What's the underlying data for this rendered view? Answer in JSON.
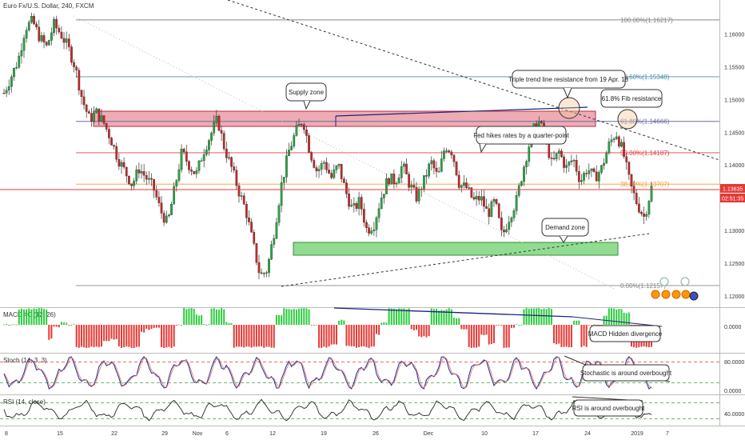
{
  "header": {
    "symbol_title": "Euro Fx/U.S. Dollar, 240, FXCM"
  },
  "price_tags": {
    "last": "1.13635",
    "countdown": "02:51:35"
  },
  "fib_levels": [
    {
      "label": "100.00%(1.16217)",
      "price": 1.16217,
      "color": "#888888"
    },
    {
      "label": "78.60%(1.15348)",
      "price": 1.15348,
      "color": "#4a8fa8"
    },
    {
      "label": "61.80%(1.14666)",
      "price": 1.14666,
      "color": "#6a6aa8"
    },
    {
      "label": "50.00%(1.14187)",
      "price": 1.14187,
      "color": "#e04040"
    },
    {
      "label": "38.20%(1.13707)",
      "price": 1.13707,
      "color": "#f0a030"
    },
    {
      "label": "0.00%(1.12157)",
      "price": 1.12157,
      "color": "#888888"
    }
  ],
  "annotations": {
    "supply_zone": "Supply zone",
    "triple_trend": "Triple trend line resistance from 19 Apr. 18",
    "fib_resistance": "61.8% Fib resistance",
    "fed_hikes": "Fed hikes rates by a quarter-point",
    "demand_zone": "Demand zone",
    "macd_div": "MACD Hidden divergence",
    "stoch_ob": "Stochastic is around overbought",
    "rsi_ob": "RSI is around overbought"
  },
  "indicators": {
    "macd": {
      "title": "MACD 4C (12, 26)",
      "ticks": [
        "0.0000"
      ]
    },
    "stoch": {
      "title": "Stoch (14, 3, 3)",
      "ticks": [
        "80.0000",
        "0.0000"
      ]
    },
    "rsi": {
      "title": "RSI (14, close)",
      "ticks": [
        "40.0000"
      ]
    }
  },
  "chart_data": {
    "type": "candlestick",
    "title": "Euro Fx/U.S. Dollar, 240, FXCM",
    "ylim": [
      1.119,
      1.1635
    ],
    "y_ticks": [
      "1.16000",
      "1.15500",
      "1.15000",
      "1.14500",
      "1.14000",
      "1.13500",
      "1.13000",
      "1.12500",
      "1.12000"
    ],
    "x_ticks": [
      "8",
      "15",
      "22",
      "29",
      "Nov",
      "6",
      "12",
      "19",
      "26",
      "Dec",
      "10",
      "17",
      "24",
      "2019",
      "7"
    ],
    "price_path": [
      [
        8,
        1.151
      ],
      [
        10,
        1.156
      ],
      [
        11,
        1.161
      ],
      [
        12,
        1.162
      ],
      [
        13,
        1.1595
      ],
      [
        14,
        1.158
      ],
      [
        15,
        1.1615
      ],
      [
        16,
        1.16
      ],
      [
        17,
        1.158
      ],
      [
        18,
        1.155
      ],
      [
        19,
        1.15
      ],
      [
        20,
        1.147
      ],
      [
        21,
        1.148
      ],
      [
        22,
        1.1465
      ],
      [
        23,
        1.144
      ],
      [
        24,
        1.141
      ],
      [
        25,
        1.139
      ],
      [
        26,
        1.137
      ],
      [
        27,
        1.1395
      ],
      [
        28,
        1.138
      ],
      [
        29,
        1.1365
      ],
      [
        30,
        1.133
      ],
      [
        31,
        1.131
      ],
      [
        32,
        1.1365
      ],
      [
        33,
        1.142
      ],
      [
        34,
        1.14
      ],
      [
        35,
        1.1385
      ],
      [
        36,
        1.142
      ],
      [
        37,
        1.1445
      ],
      [
        38,
        1.147
      ],
      [
        39,
        1.1425
      ],
      [
        40,
        1.1395
      ],
      [
        41,
        1.136
      ],
      [
        42,
        1.133
      ],
      [
        43,
        1.128
      ],
      [
        44,
        1.123
      ],
      [
        45,
        1.124
      ],
      [
        46,
        1.13
      ],
      [
        47,
        1.137
      ],
      [
        48,
        1.142
      ],
      [
        49,
        1.145
      ],
      [
        50,
        1.147
      ],
      [
        51,
        1.142
      ],
      [
        52,
        1.139
      ],
      [
        53,
        1.1405
      ],
      [
        54,
        1.138
      ],
      [
        55,
        1.14
      ],
      [
        56,
        1.136
      ],
      [
        57,
        1.133
      ],
      [
        58,
        1.1345
      ],
      [
        59,
        1.13
      ],
      [
        60,
        1.131
      ],
      [
        61,
        1.135
      ],
      [
        62,
        1.138
      ],
      [
        63,
        1.1375
      ],
      [
        64,
        1.14
      ],
      [
        65,
        1.137
      ],
      [
        66,
        1.135
      ],
      [
        67,
        1.1375
      ],
      [
        68,
        1.1405
      ],
      [
        69,
        1.138
      ],
      [
        70,
        1.143
      ],
      [
        71,
        1.142
      ],
      [
        72,
        1.137
      ],
      [
        73,
        1.1365
      ],
      [
        74,
        1.1345
      ],
      [
        75,
        1.135
      ],
      [
        76,
        1.1325
      ],
      [
        77,
        1.1345
      ],
      [
        78,
        1.129
      ],
      [
        79,
        1.132
      ],
      [
        80,
        1.1345
      ],
      [
        81,
        1.1395
      ],
      [
        82,
        1.144
      ],
      [
        83,
        1.147
      ],
      [
        84,
        1.1445
      ],
      [
        85,
        1.14
      ],
      [
        86,
        1.142
      ],
      [
        87,
        1.1395
      ],
      [
        88,
        1.141
      ],
      [
        89,
        1.1375
      ],
      [
        90,
        1.1395
      ],
      [
        91,
        1.138
      ],
      [
        92,
        1.1395
      ],
      [
        93,
        1.143
      ],
      [
        94,
        1.145
      ],
      [
        95,
        1.142
      ],
      [
        96,
        1.137
      ],
      [
        97,
        1.134
      ],
      [
        98,
        1.132
      ],
      [
        99,
        1.1365
      ]
    ]
  }
}
